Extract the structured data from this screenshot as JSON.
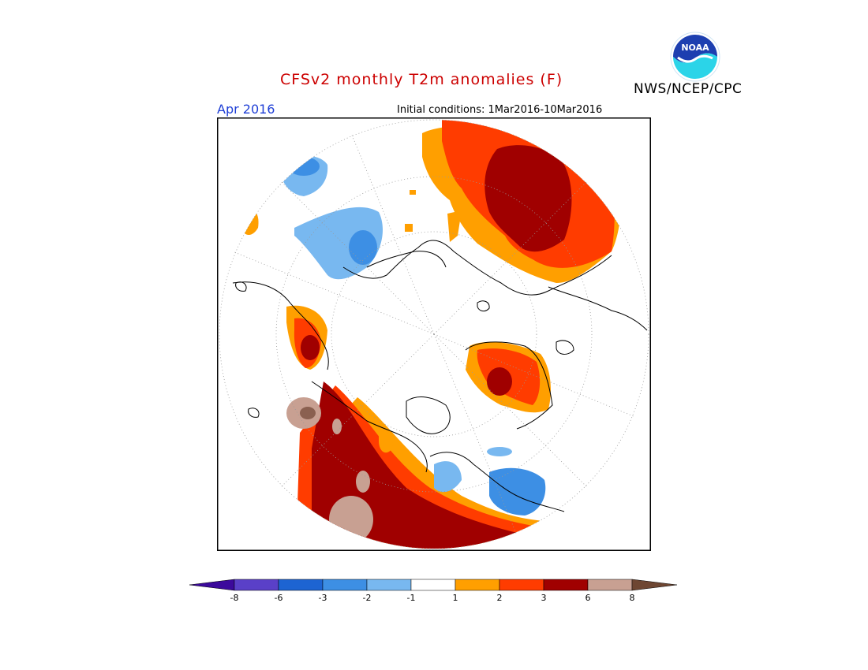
{
  "header": {
    "title": "CFSv2 monthly T2m anomalies (F)",
    "agency": "NWS/NCEP/CPC",
    "month": "Apr 2016",
    "initial_conditions": "Initial conditions: 1Mar2016-10Mar2016",
    "logo_text": "NOAA"
  },
  "colorbar": {
    "ticks": [
      "-8",
      "-6",
      "-3",
      "-2",
      "-1",
      "1",
      "2",
      "3",
      "6",
      "8"
    ],
    "colors": [
      "#3c0a9c",
      "#5a40c8",
      "#1d64d2",
      "#3d8fe4",
      "#78b8f0",
      "#ffffff",
      "#ff9f00",
      "#ff3c00",
      "#a00000",
      "#c8a092",
      "#6e4632"
    ]
  },
  "map": {
    "projection": "north polar stereographic",
    "colors": {
      "anom_m2": "#78b8f0",
      "anom_m3": "#3d8fe4",
      "anom_p1": "#ff9f00",
      "anom_p2": "#ff3c00",
      "anom_p3": "#a00000",
      "anom_p6": "#c8a092",
      "anom_p8": "#8a6050"
    }
  }
}
